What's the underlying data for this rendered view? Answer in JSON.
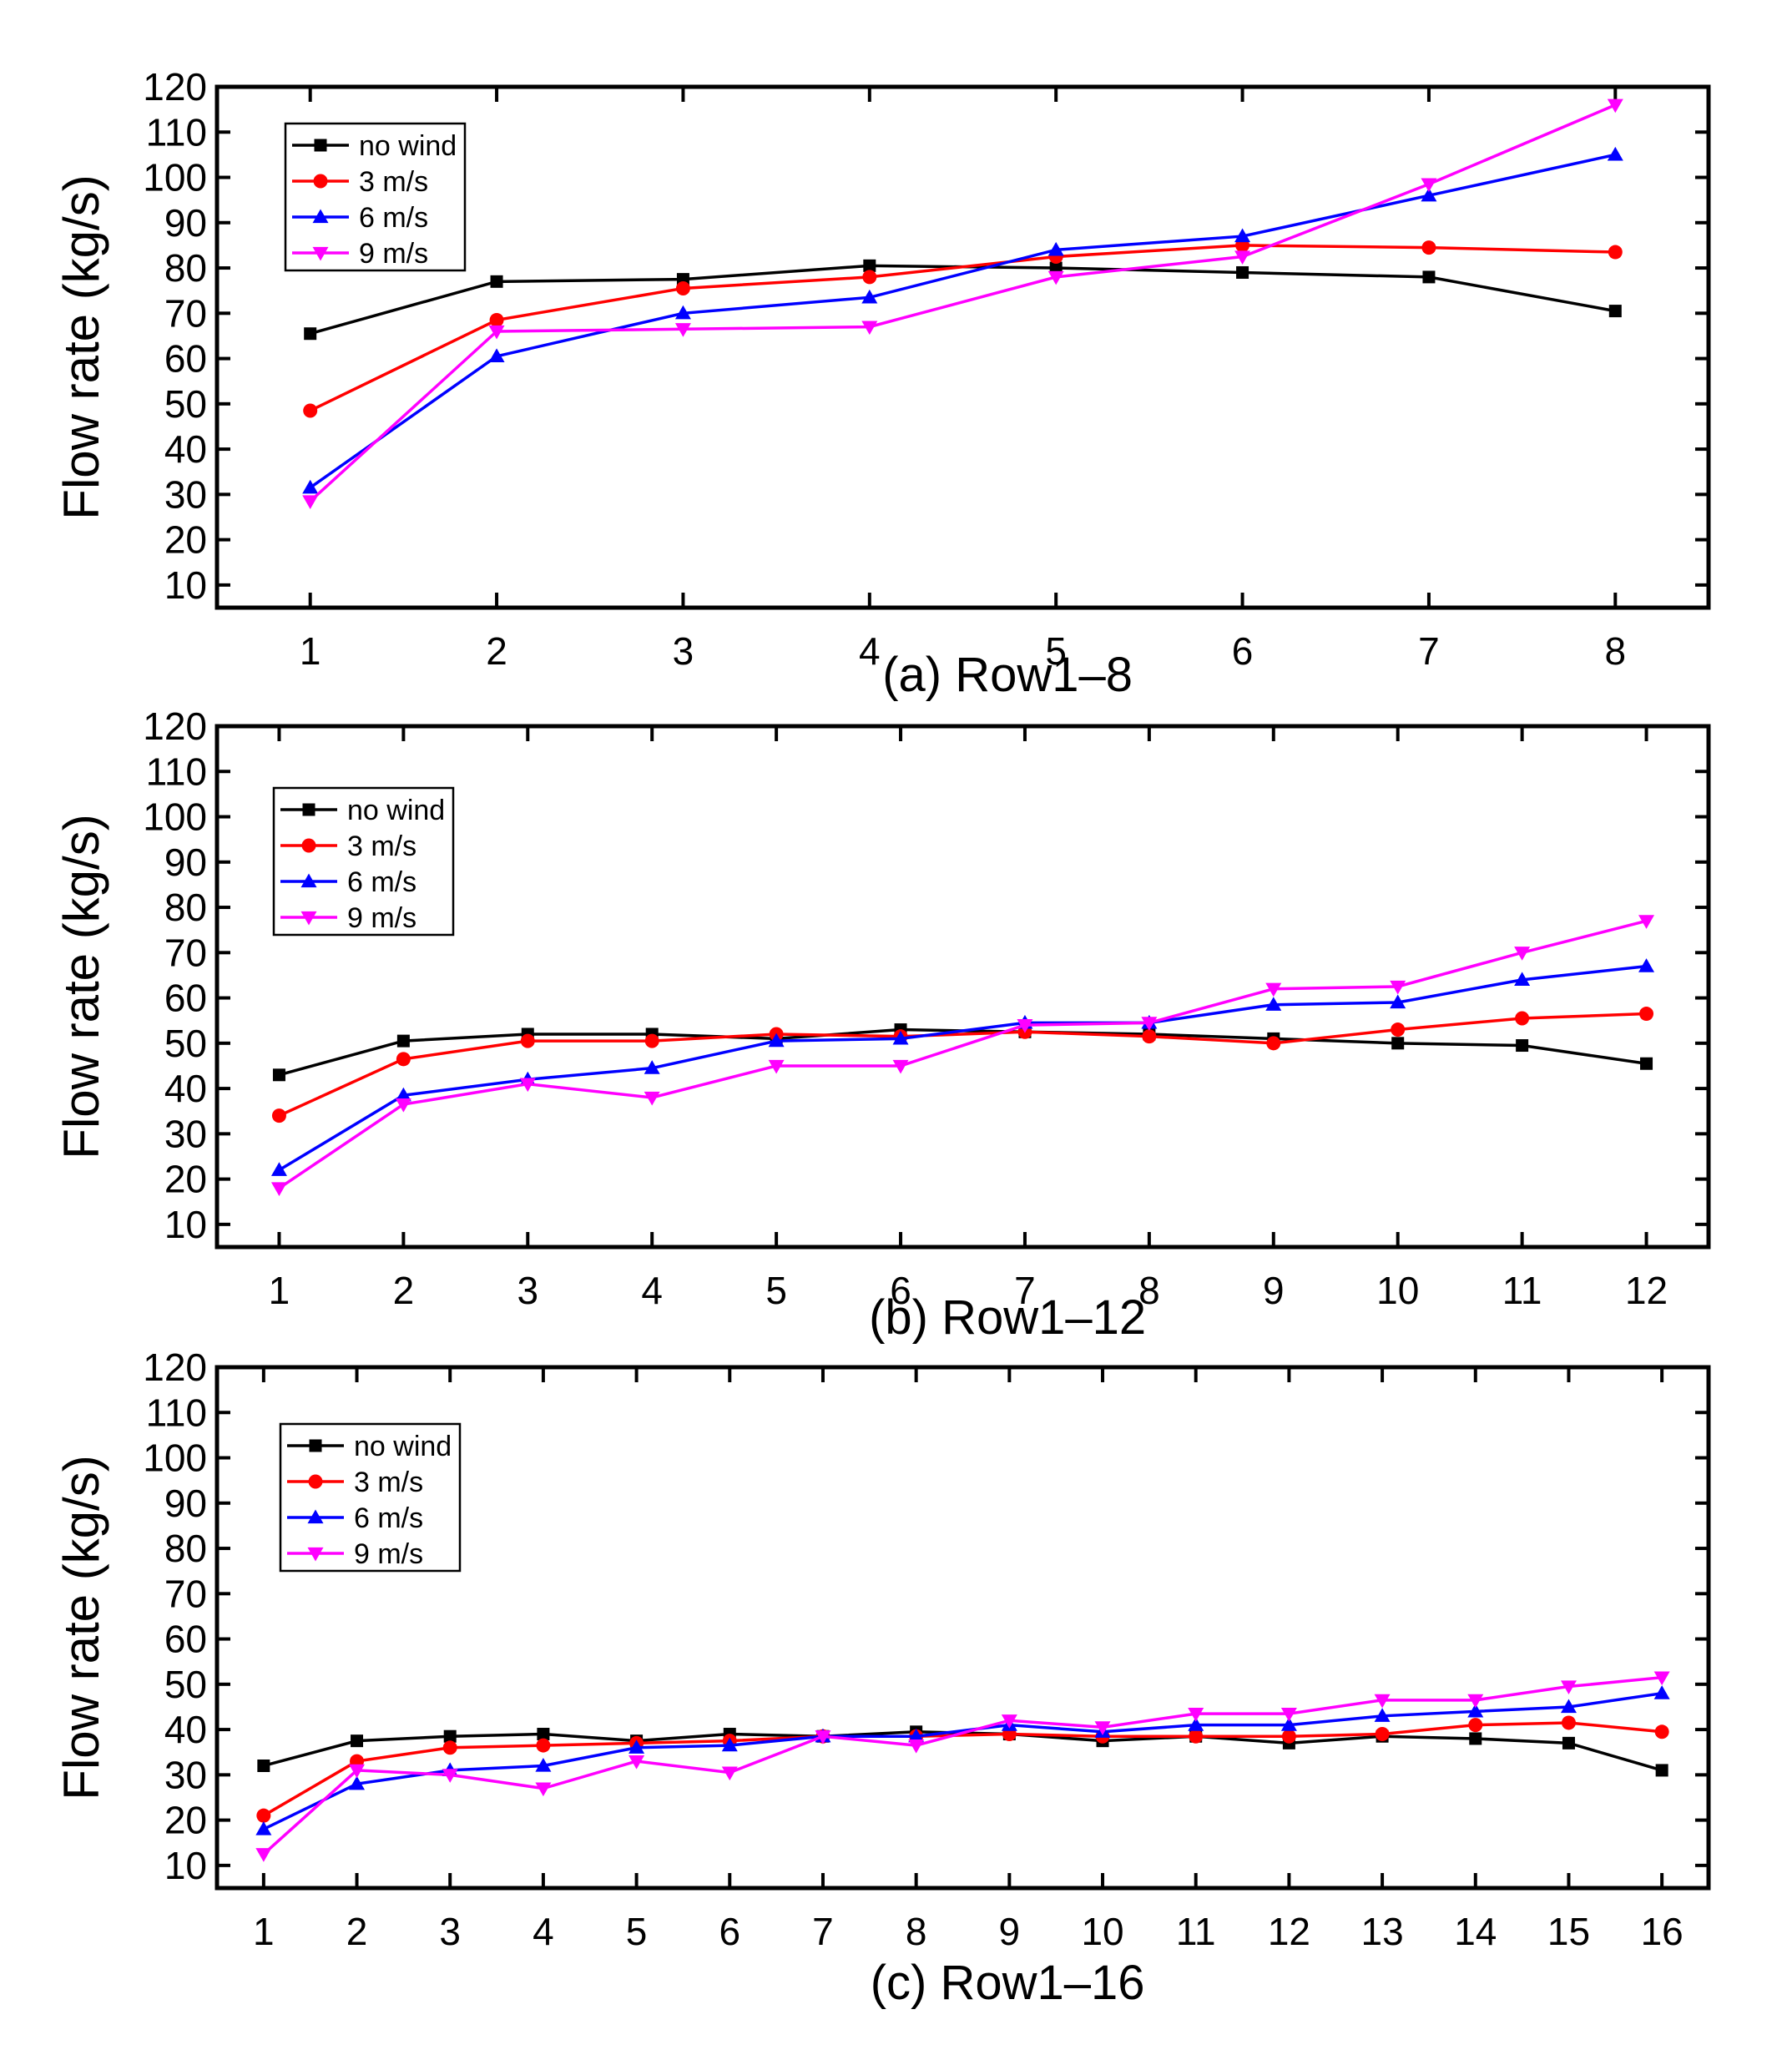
{
  "chart_data": [
    {
      "type": "line",
      "caption": "(a) Row1–8",
      "xlabel": "",
      "ylabel": "Flow rate (kg/s)",
      "x": [
        1,
        2,
        3,
        4,
        5,
        6,
        7,
        8
      ],
      "xlim": [
        0.5,
        8.5
      ],
      "ylim": [
        5,
        120
      ],
      "yticks": [
        10,
        20,
        30,
        40,
        50,
        60,
        70,
        80,
        90,
        100,
        110,
        120
      ],
      "legend_position": "top-left",
      "series": [
        {
          "name": "no wind",
          "color": "#000000",
          "marker": "square",
          "values": [
            65.5,
            77,
            77.5,
            80.5,
            80,
            79,
            78,
            70.5
          ]
        },
        {
          "name": "3 m/s",
          "color": "#ff0000",
          "marker": "circle",
          "values": [
            48.5,
            68.5,
            75.5,
            78,
            82.5,
            85,
            84.5,
            83.5
          ]
        },
        {
          "name": "6 m/s",
          "color": "#0000ff",
          "marker": "triangle-up",
          "values": [
            31.5,
            60.5,
            70,
            73.5,
            84,
            87,
            96,
            105
          ]
        },
        {
          "name": "9 m/s",
          "color": "#ff00ff",
          "marker": "triangle-down",
          "values": [
            28.5,
            66,
            66.5,
            67,
            78,
            82.5,
            98.5,
            116
          ]
        }
      ]
    },
    {
      "type": "line",
      "caption": "(b) Row1–12",
      "xlabel": "",
      "ylabel": "Flow rate (kg/s)",
      "x": [
        1,
        2,
        3,
        4,
        5,
        6,
        7,
        8,
        9,
        10,
        11,
        12
      ],
      "xlim": [
        0.5,
        12.5
      ],
      "ylim": [
        5,
        120
      ],
      "yticks": [
        10,
        20,
        30,
        40,
        50,
        60,
        70,
        80,
        90,
        100,
        110,
        120
      ],
      "legend_position": "top-left",
      "series": [
        {
          "name": "no wind",
          "color": "#000000",
          "marker": "square",
          "values": [
            43,
            50.5,
            52,
            52,
            51,
            53,
            52.5,
            52,
            51,
            50,
            49.5,
            45.5
          ]
        },
        {
          "name": "3 m/s",
          "color": "#ff0000",
          "marker": "circle",
          "values": [
            34,
            46.5,
            50.5,
            50.5,
            52,
            51.5,
            52.5,
            51.5,
            50,
            53,
            55.5,
            56.5
          ]
        },
        {
          "name": "6 m/s",
          "color": "#0000ff",
          "marker": "triangle-up",
          "values": [
            22,
            38.5,
            42,
            44.5,
            50.5,
            51,
            54.5,
            54.5,
            58.5,
            59,
            64,
            67
          ]
        },
        {
          "name": "9 m/s",
          "color": "#ff00ff",
          "marker": "triangle-down",
          "values": [
            18,
            36.5,
            41,
            38,
            45,
            45,
            54,
            54.5,
            62,
            62.5,
            70,
            77
          ]
        }
      ]
    },
    {
      "type": "line",
      "caption": "(c) Row1–16",
      "xlabel": "",
      "ylabel": "Flow rate (kg/s)",
      "x": [
        1,
        2,
        3,
        4,
        5,
        6,
        7,
        8,
        9,
        10,
        11,
        12,
        13,
        14,
        15,
        16
      ],
      "xlim": [
        0.5,
        16.5
      ],
      "ylim": [
        5,
        120
      ],
      "yticks": [
        10,
        20,
        30,
        40,
        50,
        60,
        70,
        80,
        90,
        100,
        110,
        120
      ],
      "legend_position": "top-left",
      "series": [
        {
          "name": "no wind",
          "color": "#000000",
          "marker": "square",
          "values": [
            32,
            37.5,
            38.5,
            39,
            37.5,
            39,
            38.5,
            39.5,
            39,
            37.5,
            38.5,
            37,
            38.5,
            38,
            37,
            31
          ]
        },
        {
          "name": "3 m/s",
          "color": "#ff0000",
          "marker": "circle",
          "values": [
            21,
            33,
            36,
            36.5,
            37,
            37.5,
            38.5,
            38.5,
            39,
            38.5,
            38.5,
            38.5,
            39,
            41,
            41.5,
            39.5
          ]
        },
        {
          "name": "6 m/s",
          "color": "#0000ff",
          "marker": "triangle-up",
          "values": [
            18,
            28,
            31,
            32,
            36,
            36.5,
            38.5,
            38.5,
            41,
            39.5,
            41,
            41,
            43,
            44,
            45,
            48
          ]
        },
        {
          "name": "9 m/s",
          "color": "#ff00ff",
          "marker": "triangle-down",
          "values": [
            12.5,
            31,
            30,
            27,
            33,
            30.5,
            38.5,
            36.5,
            42,
            40.5,
            43.5,
            43.5,
            46.5,
            46.5,
            49.5,
            51.5
          ]
        }
      ]
    }
  ]
}
